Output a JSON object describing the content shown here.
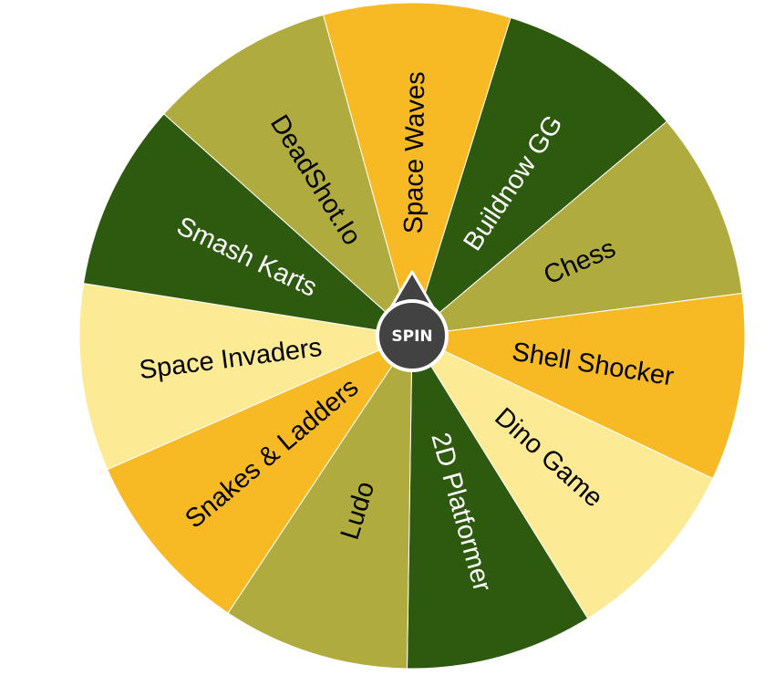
{
  "wheel": {
    "spin_label": "SPIN",
    "segments": [
      {
        "label": "Space Waves",
        "color": "#F7B924",
        "text_color": "#000000"
      },
      {
        "label": "Buildnow GG",
        "color": "#2E5A10",
        "text_color": "#ffffff"
      },
      {
        "label": "Chess",
        "color": "#AFAB3E",
        "text_color": "#000000"
      },
      {
        "label": "Shell Shocker",
        "color": "#F7B924",
        "text_color": "#000000"
      },
      {
        "label": "Dino Game",
        "color": "#FCEA95",
        "text_color": "#000000"
      },
      {
        "label": "2D Platformer",
        "color": "#2E5A10",
        "text_color": "#ffffff"
      },
      {
        "label": "Ludo",
        "color": "#AFAB3E",
        "text_color": "#000000"
      },
      {
        "label": "Snakes & Ladders",
        "color": "#F7B924",
        "text_color": "#000000"
      },
      {
        "label": "Space Invaders",
        "color": "#FCEA95",
        "text_color": "#000000"
      },
      {
        "label": "Smash Karts",
        "color": "#2E5A10",
        "text_color": "#ffffff"
      },
      {
        "label": "DeadShot.Io",
        "color": "#AFAB3E",
        "text_color": "#000000"
      }
    ],
    "hub_color": "#424242",
    "border_color": "#ffffff"
  }
}
